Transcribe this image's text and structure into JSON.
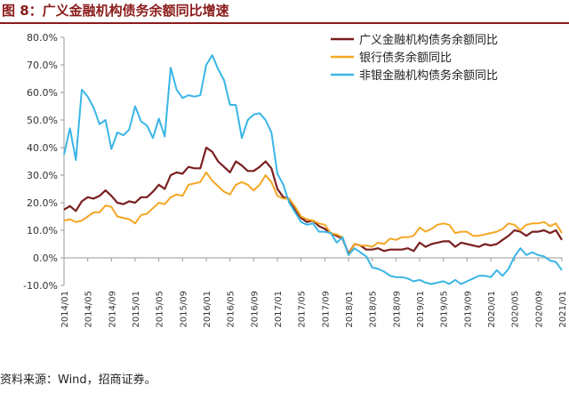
{
  "figure": {
    "title": "图 8：广义金融机构债务余额同比增速",
    "source": "资料来源：Wind，招商证券。"
  },
  "colors": {
    "title": "#8b1a1a",
    "series": [
      "#7a1f1f",
      "#f5a623",
      "#3ab5e6"
    ],
    "axis": "#9a9a9a"
  },
  "chart_data": {
    "type": "line",
    "legend_position": "top-right",
    "grid": false,
    "ylim": [
      -10,
      80
    ],
    "yticks": [
      -10,
      0,
      10,
      20,
      30,
      40,
      50,
      60,
      70,
      80
    ],
    "ytick_labels": [
      "-10.0%",
      "0.0%",
      "10.0%",
      "20.0%",
      "30.0%",
      "40.0%",
      "50.0%",
      "60.0%",
      "70.0%",
      "80.0%"
    ],
    "xtick_labels": [
      "2014/01",
      "2014/05",
      "2014/09",
      "2015/01",
      "2015/05",
      "2015/09",
      "2016/01",
      "2016/05",
      "2016/09",
      "2017/01",
      "2017/05",
      "2017/09",
      "2018/01",
      "2018/05",
      "2018/09",
      "2019/01",
      "2019/05",
      "2019/09",
      "2020/01",
      "2020/05",
      "2020/09",
      "2021/01"
    ],
    "x": [
      "2014/01",
      "2014/02",
      "2014/03",
      "2014/04",
      "2014/05",
      "2014/06",
      "2014/07",
      "2014/08",
      "2014/09",
      "2014/10",
      "2014/11",
      "2014/12",
      "2015/01",
      "2015/02",
      "2015/03",
      "2015/04",
      "2015/05",
      "2015/06",
      "2015/07",
      "2015/08",
      "2015/09",
      "2015/10",
      "2015/11",
      "2015/12",
      "2016/01",
      "2016/02",
      "2016/03",
      "2016/04",
      "2016/05",
      "2016/06",
      "2016/07",
      "2016/08",
      "2016/09",
      "2016/10",
      "2016/11",
      "2016/12",
      "2017/01",
      "2017/02",
      "2017/03",
      "2017/04",
      "2017/05",
      "2017/06",
      "2017/07",
      "2017/08",
      "2017/09",
      "2017/10",
      "2017/11",
      "2017/12",
      "2018/01",
      "2018/02",
      "2018/03",
      "2018/04",
      "2018/05",
      "2018/06",
      "2018/07",
      "2018/08",
      "2018/09",
      "2018/10",
      "2018/11",
      "2018/12",
      "2019/01",
      "2019/02",
      "2019/03",
      "2019/04",
      "2019/05",
      "2019/06",
      "2019/07",
      "2019/08",
      "2019/09",
      "2019/10",
      "2019/11",
      "2019/12",
      "2020/01",
      "2020/02",
      "2020/03",
      "2020/04",
      "2020/05",
      "2020/06",
      "2020/07",
      "2020/08",
      "2020/09",
      "2020/10",
      "2020/11",
      "2020/12",
      "2021/01"
    ],
    "series": [
      {
        "name": "广义金融机构债务余额同比",
        "values": [
          17.5,
          18.8,
          17.0,
          20.5,
          22.0,
          21.5,
          22.5,
          24.5,
          22.5,
          20.0,
          19.5,
          20.5,
          20.0,
          22.0,
          22.0,
          24.0,
          26.5,
          25.0,
          30.0,
          31.0,
          30.5,
          33.0,
          32.5,
          32.5,
          40.0,
          38.5,
          35.0,
          33.0,
          31.0,
          35.0,
          33.5,
          31.5,
          31.5,
          33.0,
          35.0,
          32.5,
          25.0,
          22.0,
          21.5,
          17.5,
          14.5,
          13.0,
          13.5,
          11.5,
          10.5,
          9.0,
          8.0,
          7.0,
          1.5,
          5.0,
          4.5,
          3.0,
          3.0,
          3.5,
          2.5,
          3.0,
          3.0,
          3.0,
          3.5,
          2.5,
          5.5,
          4.0,
          5.0,
          5.5,
          6.0,
          6.0,
          4.0,
          5.5,
          5.0,
          4.5,
          4.0,
          5.0,
          4.5,
          5.0,
          6.5,
          8.0,
          10.0,
          9.5,
          8.0,
          9.5,
          9.5,
          10.0,
          9.0,
          10.0,
          6.5
        ]
      },
      {
        "name": "银行债务余额同比",
        "values": [
          13.5,
          14.0,
          13.0,
          13.5,
          15.0,
          16.5,
          16.5,
          19.0,
          18.5,
          15.0,
          14.5,
          14.0,
          12.5,
          15.5,
          16.0,
          18.0,
          20.0,
          19.5,
          22.0,
          23.0,
          22.5,
          26.5,
          27.0,
          27.5,
          31.0,
          28.0,
          26.0,
          24.0,
          23.0,
          26.5,
          27.5,
          26.5,
          24.5,
          26.5,
          30.0,
          27.5,
          22.5,
          21.5,
          21.5,
          18.5,
          15.0,
          14.0,
          13.5,
          12.5,
          12.0,
          9.0,
          8.5,
          7.5,
          1.0,
          5.0,
          4.5,
          4.5,
          4.0,
          5.5,
          5.0,
          7.0,
          6.5,
          7.5,
          7.5,
          8.0,
          11.0,
          9.5,
          10.5,
          12.0,
          12.5,
          12.0,
          9.0,
          9.5,
          9.5,
          8.0,
          8.0,
          8.5,
          9.0,
          9.5,
          10.5,
          12.5,
          12.0,
          10.0,
          12.0,
          12.5,
          12.5,
          13.0,
          11.5,
          12.5,
          9.0
        ]
      },
      {
        "name": "非银金融机构债务余额同比",
        "values": [
          37.5,
          47.0,
          35.5,
          61.0,
          58.5,
          54.5,
          48.5,
          50.0,
          39.5,
          45.5,
          44.5,
          46.5,
          55.0,
          49.5,
          48.0,
          43.5,
          50.5,
          44.0,
          69.0,
          61.0,
          58.0,
          59.0,
          58.5,
          59.0,
          70.0,
          73.5,
          68.5,
          64.5,
          55.5,
          55.5,
          43.5,
          50.0,
          52.0,
          52.5,
          50.0,
          45.5,
          30.5,
          26.5,
          20.0,
          16.5,
          13.0,
          12.0,
          12.5,
          9.5,
          9.5,
          9.0,
          5.5,
          7.5,
          1.0,
          3.5,
          2.0,
          0.5,
          -3.5,
          -4.0,
          -5.0,
          -6.5,
          -7.0,
          -7.0,
          -7.5,
          -8.5,
          -8.0,
          -9.0,
          -9.5,
          -9.0,
          -8.5,
          -9.5,
          -8.0,
          -9.5,
          -8.5,
          -7.5,
          -6.5,
          -6.5,
          -7.0,
          -4.5,
          -6.5,
          -4.0,
          0.5,
          3.5,
          1.0,
          2.0,
          1.0,
          0.5,
          -1.0,
          -1.5,
          -4.5
        ]
      }
    ]
  }
}
